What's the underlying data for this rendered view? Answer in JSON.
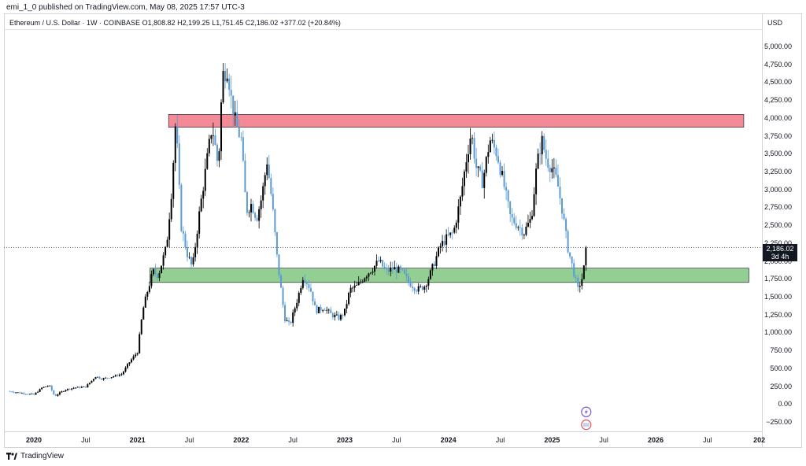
{
  "header": {
    "published": "emi_1_0 published on TradingView.com, May 08, 2025 17:57 UTC-3"
  },
  "symbol": {
    "title": "Ethereum / U.S. Dollar · 1W · COINBASE",
    "open": "O1,808.82",
    "high": "H2,199.25",
    "low": "L1,751.45",
    "close": "C2,186.02",
    "change": "+377.02 (+20.84%)"
  },
  "currency": "USD",
  "last_price": {
    "value": "2,186.02",
    "countdown": "3d 4h"
  },
  "footer": {
    "brand": "TradingView"
  },
  "colors": {
    "up": "#000000",
    "down": "#5b9bd5",
    "resistance": "#f28b95",
    "support": "#93cf93",
    "badge": "#7b5cc4",
    "badge2": "#e0555a"
  },
  "chart_data": {
    "type": "candlestick",
    "instrument": "Ethereum / U.S. Dollar",
    "interval": "1W",
    "exchange": "COINBASE",
    "ylim": [
      -350,
      5150
    ],
    "yticks": [
      "5,000.00",
      "4,750.00",
      "4,500.00",
      "4,250.00",
      "4,000.00",
      "3,750.00",
      "3,500.00",
      "3,250.00",
      "3,000.00",
      "2,750.00",
      "2,500.00",
      "2,250.00",
      "2,000.00",
      "1,750.00",
      "1,500.00",
      "1,250.00",
      "1,000.00",
      "750.00",
      "500.00",
      "250.00",
      "0.00",
      "−250.00"
    ],
    "ytick_values": [
      5000,
      4750,
      4500,
      4250,
      4000,
      3750,
      3500,
      3250,
      3000,
      2750,
      2500,
      2250,
      2000,
      1750,
      1500,
      1250,
      1000,
      750,
      500,
      250,
      0,
      -250
    ],
    "xticks": [
      {
        "label": "2020",
        "t": 2020.0,
        "bold": true
      },
      {
        "label": "Jul",
        "t": 2020.5,
        "bold": false
      },
      {
        "label": "2021",
        "t": 2021.0,
        "bold": true
      },
      {
        "label": "Jul",
        "t": 2021.5,
        "bold": false
      },
      {
        "label": "2022",
        "t": 2022.0,
        "bold": true
      },
      {
        "label": "Jul",
        "t": 2022.5,
        "bold": false
      },
      {
        "label": "2023",
        "t": 2023.0,
        "bold": true
      },
      {
        "label": "Jul",
        "t": 2023.5,
        "bold": false
      },
      {
        "label": "2024",
        "t": 2024.0,
        "bold": true
      },
      {
        "label": "Jul",
        "t": 2024.5,
        "bold": false
      },
      {
        "label": "2025",
        "t": 2025.0,
        "bold": true
      },
      {
        "label": "Jul",
        "t": 2025.5,
        "bold": false
      },
      {
        "label": "2026",
        "t": 2026.0,
        "bold": true
      },
      {
        "label": "Jul",
        "t": 2026.5,
        "bold": false
      },
      {
        "label": "202",
        "t": 2027.0,
        "bold": true
      }
    ],
    "xlim": [
      2019.75,
      2027.0
    ],
    "zones": [
      {
        "name": "resistance",
        "t_start": 2021.3,
        "t_end": 2026.85,
        "low": 3870,
        "high": 4050
      },
      {
        "name": "support",
        "t_start": 2021.12,
        "t_end": 2026.9,
        "low": 1700,
        "high": 1900
      }
    ],
    "price_line": 2186.02,
    "path": [
      [
        2019.75,
        180
      ],
      [
        2019.9,
        150
      ],
      [
        2020.0,
        130
      ],
      [
        2020.08,
        230
      ],
      [
        2020.15,
        260
      ],
      [
        2020.2,
        110
      ],
      [
        2020.3,
        200
      ],
      [
        2020.4,
        230
      ],
      [
        2020.5,
        240
      ],
      [
        2020.6,
        390
      ],
      [
        2020.65,
        350
      ],
      [
        2020.75,
        380
      ],
      [
        2020.85,
        420
      ],
      [
        2020.92,
        580
      ],
      [
        2021.0,
        730
      ],
      [
        2021.05,
        1300
      ],
      [
        2021.1,
        1600
      ],
      [
        2021.15,
        1850
      ],
      [
        2021.2,
        1800
      ],
      [
        2021.28,
        2200
      ],
      [
        2021.33,
        3000
      ],
      [
        2021.37,
        4000
      ],
      [
        2021.42,
        2500
      ],
      [
        2021.48,
        2100
      ],
      [
        2021.53,
        1900
      ],
      [
        2021.6,
        2700
      ],
      [
        2021.67,
        3400
      ],
      [
        2021.72,
        3900
      ],
      [
        2021.78,
        3300
      ],
      [
        2021.82,
        4600
      ],
      [
        2021.87,
        4700
      ],
      [
        2021.9,
        4300
      ],
      [
        2021.95,
        3900
      ],
      [
        2022.0,
        3700
      ],
      [
        2022.05,
        2700
      ],
      [
        2022.1,
        2800
      ],
      [
        2022.15,
        2600
      ],
      [
        2022.2,
        2900
      ],
      [
        2022.25,
        3400
      ],
      [
        2022.3,
        2800
      ],
      [
        2022.35,
        2000
      ],
      [
        2022.42,
        1200
      ],
      [
        2022.47,
        1100
      ],
      [
        2022.55,
        1500
      ],
      [
        2022.6,
        1800
      ],
      [
        2022.67,
        1600
      ],
      [
        2022.72,
        1300
      ],
      [
        2022.8,
        1350
      ],
      [
        2022.87,
        1250
      ],
      [
        2022.95,
        1200
      ],
      [
        2023.0,
        1300
      ],
      [
        2023.05,
        1600
      ],
      [
        2023.12,
        1650
      ],
      [
        2023.2,
        1800
      ],
      [
        2023.27,
        1900
      ],
      [
        2023.33,
        2000
      ],
      [
        2023.4,
        1850
      ],
      [
        2023.47,
        1900
      ],
      [
        2023.55,
        1850
      ],
      [
        2023.62,
        1700
      ],
      [
        2023.7,
        1600
      ],
      [
        2023.77,
        1650
      ],
      [
        2023.82,
        1800
      ],
      [
        2023.87,
        2000
      ],
      [
        2023.92,
        2200
      ],
      [
        2023.97,
        2300
      ],
      [
        2024.05,
        2400
      ],
      [
        2024.12,
        2900
      ],
      [
        2024.17,
        3400
      ],
      [
        2024.22,
        3800
      ],
      [
        2024.27,
        3300
      ],
      [
        2024.33,
        3100
      ],
      [
        2024.4,
        3700
      ],
      [
        2024.47,
        3500
      ],
      [
        2024.53,
        3100
      ],
      [
        2024.6,
        2600
      ],
      [
        2024.67,
        2500
      ],
      [
        2024.73,
        2400
      ],
      [
        2024.8,
        2600
      ],
      [
        2024.85,
        3300
      ],
      [
        2024.9,
        3700
      ],
      [
        2024.95,
        3400
      ],
      [
        2025.0,
        3300
      ],
      [
        2025.05,
        3100
      ],
      [
        2025.1,
        2700
      ],
      [
        2025.15,
        2200
      ],
      [
        2025.2,
        1900
      ],
      [
        2025.25,
        1600
      ],
      [
        2025.3,
        1800
      ],
      [
        2025.33,
        2186
      ]
    ]
  }
}
